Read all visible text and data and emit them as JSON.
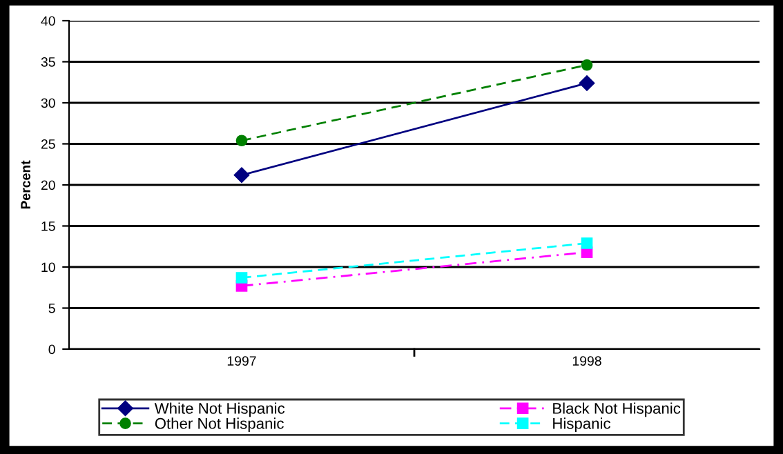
{
  "chart_data": {
    "type": "line",
    "ylabel": "Percent",
    "categories": [
      "1997",
      "1998"
    ],
    "series": [
      {
        "name": "White Not Hispanic",
        "color": "#000080",
        "values": [
          21.2,
          32.4
        ],
        "marker": "diamond",
        "line_style": "solid"
      },
      {
        "name": "Other Not Hispanic",
        "color": "#008000",
        "values": [
          25.4,
          34.6
        ],
        "marker": "circle",
        "line_style": "dashed"
      },
      {
        "name": "Black Not Hispanic",
        "color": "#ff00ff",
        "values": [
          7.7,
          11.8
        ],
        "marker": "square",
        "line_style": "dashdot"
      },
      {
        "name": "Hispanic",
        "color": "#00ffff",
        "values": [
          8.7,
          12.9
        ],
        "marker": "square",
        "line_style": "dashed"
      }
    ],
    "ylim": [
      0,
      40
    ],
    "yticks": [
      0,
      5,
      10,
      15,
      20,
      25,
      30,
      35,
      40
    ],
    "grid": "y",
    "legend": "bottom"
  }
}
